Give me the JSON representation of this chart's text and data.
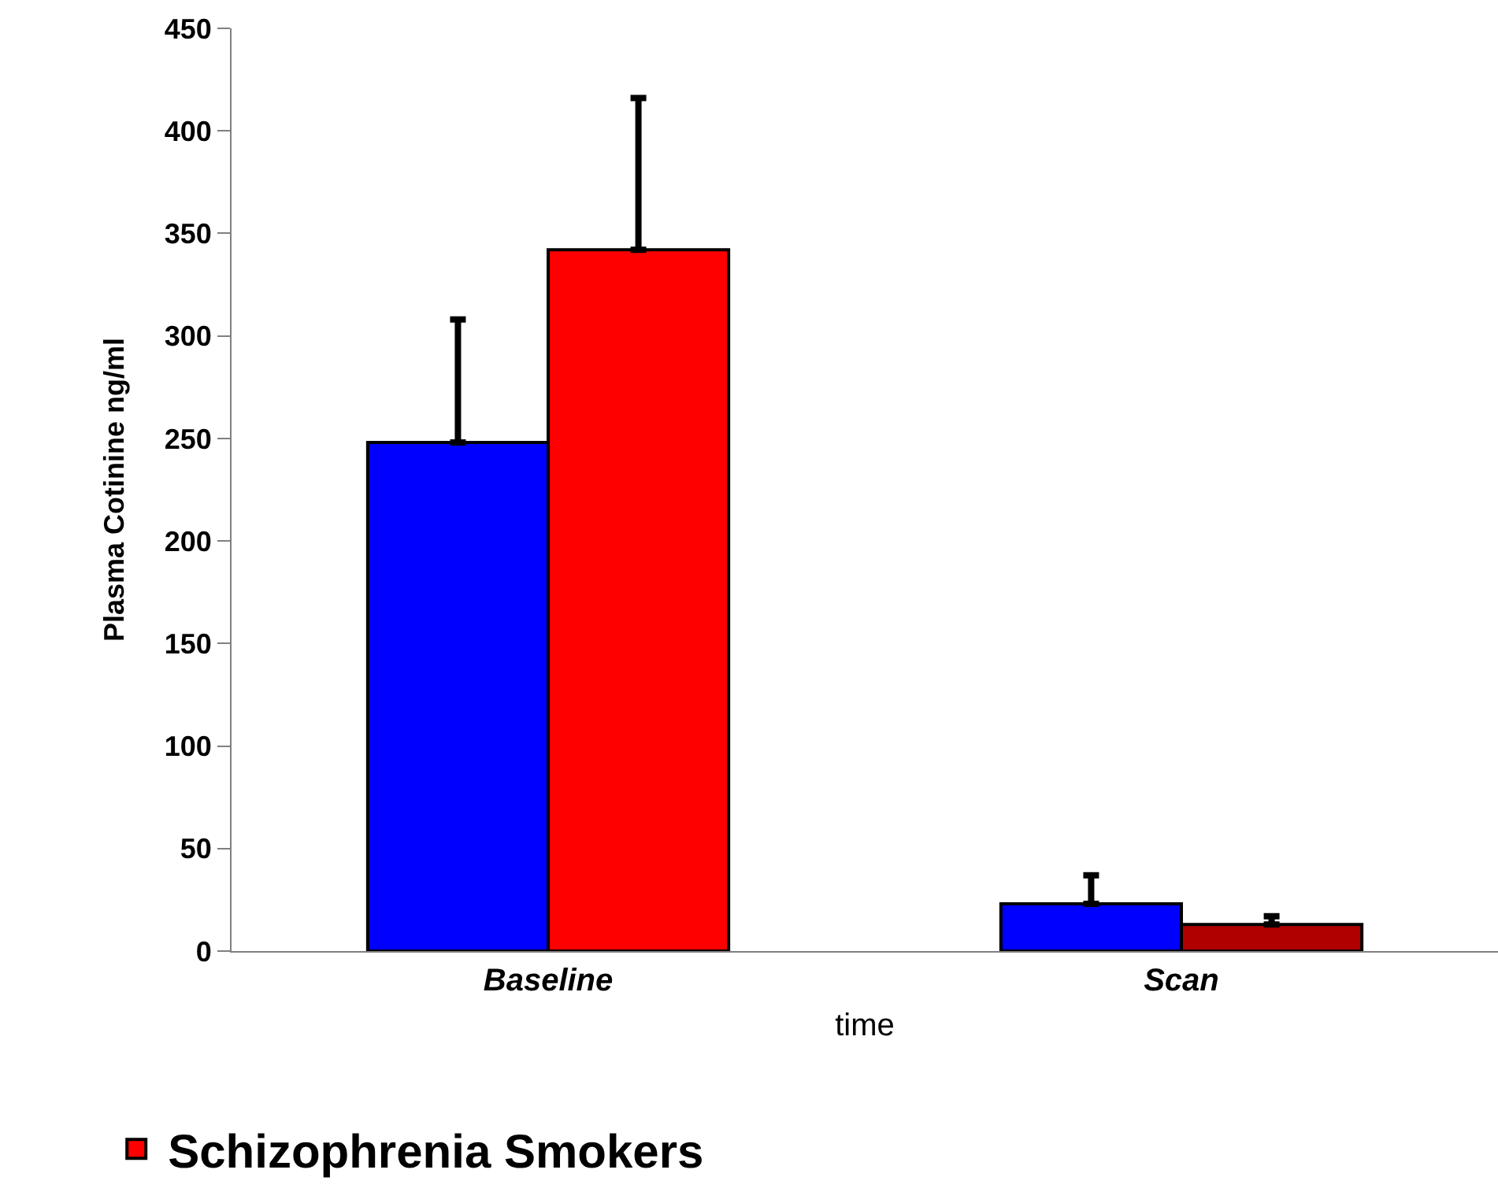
{
  "chart_data": {
    "type": "bar",
    "xlabel": "time",
    "ylabel": "Plasma Cotinine ng/ml",
    "categories": [
      "Baseline",
      "Scan"
    ],
    "series": [
      {
        "color": "#0000ff",
        "values": [
          248,
          23
        ],
        "errors": [
          [
            248,
            308
          ],
          [
            23,
            37
          ]
        ]
      },
      {
        "name": "Schizophrenia Smokers",
        "colors": [
          "#ff0000",
          "#b00000"
        ],
        "values": [
          342,
          13
        ],
        "errors": [
          [
            342,
            416
          ],
          [
            13,
            17
          ]
        ]
      }
    ],
    "ylim": [
      0,
      450
    ],
    "yticks": [
      0,
      50,
      100,
      150,
      200,
      250,
      300,
      350,
      400,
      450
    ],
    "grid": false,
    "legend": "bottom left"
  }
}
